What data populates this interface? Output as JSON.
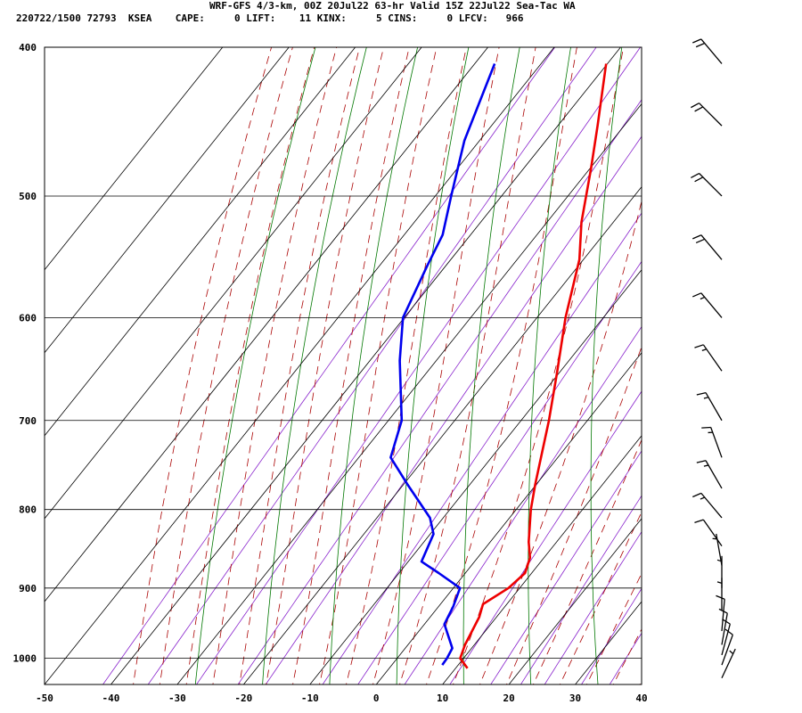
{
  "header": {
    "line1": "WRF-GFS 4/3-km, 00Z 20Jul22 63-hr Valid 15Z 22Jul22 Sea-Tac WA",
    "line2": "220722/1500 72793  KSEA    CAPE:     0 LIFT:    11 KINX:     5 CINS:     0 LFCV:   966"
  },
  "colors": {
    "temperature": "#ee0000",
    "dewpoint": "#0000ee",
    "isotherm": "#000000",
    "dry_adiabat": "#007700",
    "moist_adiabat": "#aa0000",
    "mixing_ratio": "#8822cc",
    "wind_barb": "#000000"
  },
  "chart_data": {
    "type": "skew-t",
    "x_ticks": [
      "-50",
      "-40",
      "-30",
      "-20",
      "-10",
      "0",
      "10",
      "20",
      "30",
      "40"
    ],
    "x_range_bottom": [
      -50,
      40
    ],
    "y_ticks": [
      "400",
      "500",
      "600",
      "700",
      "800",
      "900",
      "1000"
    ],
    "pressure_range": [
      400,
      1040
    ],
    "y_scale": "log",
    "grid": true,
    "temperature_profile": [
      {
        "p": 1015,
        "t": 11.8
      },
      {
        "p": 1000,
        "t": 9.5
      },
      {
        "p": 980,
        "t": 8.6
      },
      {
        "p": 940,
        "t": 7.4
      },
      {
        "p": 922,
        "t": 6.4
      },
      {
        "p": 900,
        "t": 8.3
      },
      {
        "p": 880,
        "t": 9.0
      },
      {
        "p": 860,
        "t": 7.9
      },
      {
        "p": 840,
        "t": 5.8
      },
      {
        "p": 800,
        "t": 2.2
      },
      {
        "p": 770,
        "t": -0.2
      },
      {
        "p": 700,
        "t": -5.8
      },
      {
        "p": 650,
        "t": -10.5
      },
      {
        "p": 600,
        "t": -15.7
      },
      {
        "p": 550,
        "t": -20.6
      },
      {
        "p": 520,
        "t": -24.8
      },
      {
        "p": 480,
        "t": -29.8
      },
      {
        "p": 450,
        "t": -34.0
      },
      {
        "p": 410,
        "t": -40.2
      }
    ],
    "dewpoint_profile": [
      {
        "p": 1010,
        "t": 7.6
      },
      {
        "p": 1000,
        "t": 7.5
      },
      {
        "p": 985,
        "t": 7.1
      },
      {
        "p": 950,
        "t": 3.0
      },
      {
        "p": 925,
        "t": 2.2
      },
      {
        "p": 900,
        "t": 1.0
      },
      {
        "p": 880,
        "t": -4.0
      },
      {
        "p": 865,
        "t": -8.0
      },
      {
        "p": 830,
        "t": -9.5
      },
      {
        "p": 810,
        "t": -12.0
      },
      {
        "p": 770,
        "t": -19.5
      },
      {
        "p": 740,
        "t": -25.2
      },
      {
        "p": 700,
        "t": -28.0
      },
      {
        "p": 640,
        "t": -35.5
      },
      {
        "p": 600,
        "t": -40.2
      },
      {
        "p": 555,
        "t": -42.8
      },
      {
        "p": 530,
        "t": -44.2
      },
      {
        "p": 500,
        "t": -47.6
      },
      {
        "p": 460,
        "t": -52.3
      },
      {
        "p": 410,
        "t": -57.0
      }
    ],
    "wind_barbs": [
      {
        "p": 410,
        "dir": 320,
        "kt": 20
      },
      {
        "p": 450,
        "dir": 315,
        "kt": 20
      },
      {
        "p": 500,
        "dir": 315,
        "kt": 20
      },
      {
        "p": 550,
        "dir": 320,
        "kt": 20
      },
      {
        "p": 600,
        "dir": 320,
        "kt": 15
      },
      {
        "p": 650,
        "dir": 325,
        "kt": 15
      },
      {
        "p": 700,
        "dir": 330,
        "kt": 15
      },
      {
        "p": 740,
        "dir": 340,
        "kt": 15
      },
      {
        "p": 775,
        "dir": 330,
        "kt": 15
      },
      {
        "p": 810,
        "dir": 320,
        "kt": 15
      },
      {
        "p": 845,
        "dir": 325,
        "kt": 10
      },
      {
        "p": 870,
        "dir": 350,
        "kt": 5
      },
      {
        "p": 900,
        "dir": 360,
        "kt": 5
      },
      {
        "p": 930,
        "dir": 0,
        "kt": 5
      },
      {
        "p": 960,
        "dir": 5,
        "kt": 10
      },
      {
        "p": 980,
        "dir": 10,
        "kt": 10
      },
      {
        "p": 995,
        "dir": 15,
        "kt": 10
      },
      {
        "p": 1010,
        "dir": 20,
        "kt": 10
      },
      {
        "p": 1030,
        "dir": 25,
        "kt": 5
      }
    ]
  }
}
